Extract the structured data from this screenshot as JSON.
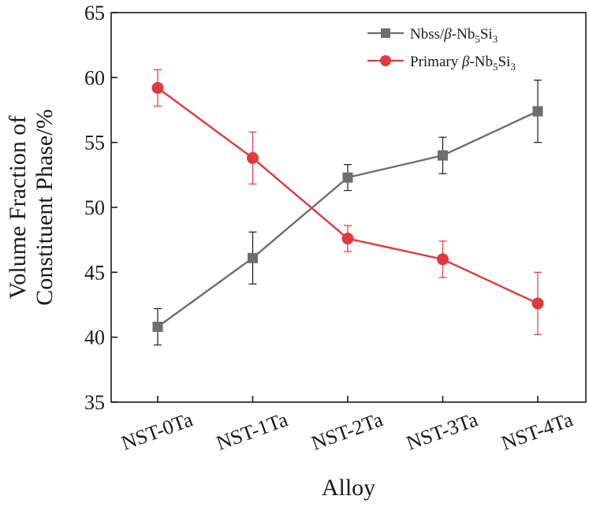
{
  "chart_data": {
    "type": "line",
    "title": "",
    "xlabel": "Alloy",
    "ylabel_line1": "Volume Fraction of",
    "ylabel_line2": "Constituent Phase/%",
    "ylim": [
      35,
      65
    ],
    "yticks": [
      "35",
      "40",
      "45",
      "50",
      "55",
      "60",
      "65"
    ],
    "categories": [
      "NST-0Ta",
      "NST-1Ta",
      "NST-2Ta",
      "NST-3Ta",
      "NST-4Ta"
    ],
    "series": [
      {
        "name": "Nbss/β-Nb5Si3",
        "legend": {
          "pre": "Nbss/",
          "greek": "β",
          "mid": "-Nb",
          "sub1": "5",
          "si": "Si",
          "sub2": "3"
        },
        "marker": "square",
        "color": "#6e6e6e",
        "errcolor": "#1a1a1a",
        "values": [
          40.8,
          46.1,
          52.3,
          54.0,
          57.4
        ],
        "errors": [
          1.4,
          2.0,
          1.0,
          1.4,
          2.4
        ]
      },
      {
        "name": "Primary β-Nb5Si3",
        "legend": {
          "pre": "Primary ",
          "greek": "β",
          "mid": "-Nb",
          "sub1": "5",
          "si": "Si",
          "sub2": "3"
        },
        "marker": "circle",
        "color": "#e0393e",
        "errcolor": "#e0393e",
        "values": [
          59.2,
          53.8,
          47.6,
          46.0,
          42.6
        ],
        "errors": [
          1.4,
          2.0,
          1.0,
          1.4,
          2.4
        ]
      }
    ],
    "legend_position": "top-right",
    "grid": false
  }
}
